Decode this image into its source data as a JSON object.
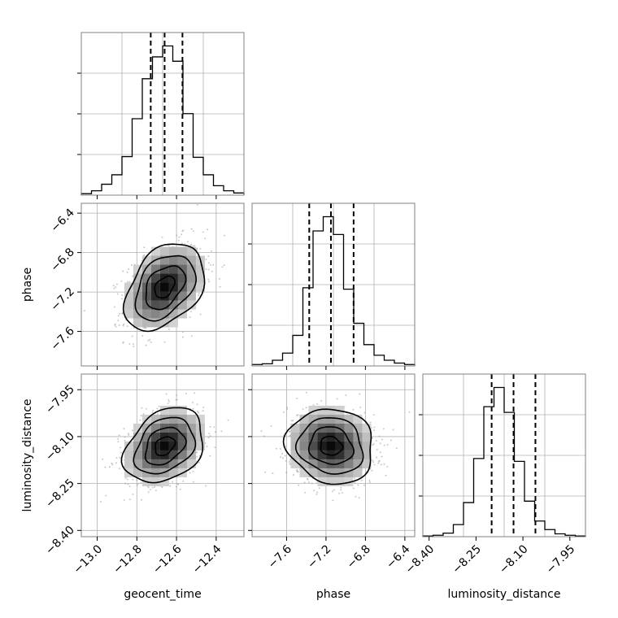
{
  "chart_data": {
    "type": "corner",
    "title": "",
    "parameters": [
      {
        "label": "geocent_time",
        "range": [
          -13.08,
          -12.26
        ],
        "ticks": [
          "−13.0",
          "−12.8",
          "−12.6",
          "−12.4"
        ],
        "tick_values": [
          -13.0,
          -12.8,
          -12.6,
          -12.4
        ],
        "quantiles": [
          -12.73,
          -12.66,
          -12.57
        ]
      },
      {
        "label": "phase",
        "range": [
          -7.95,
          -6.3
        ],
        "ticks": [
          "−7.6",
          "−7.2",
          "−6.8",
          "−6.4"
        ],
        "tick_values": [
          -7.6,
          -7.2,
          -6.8,
          -6.4
        ],
        "quantiles": [
          -7.37,
          -7.15,
          -6.92
        ]
      },
      {
        "label": "luminosity_distance",
        "range": [
          -8.42,
          -7.9
        ],
        "ticks": [
          "−8.40",
          "−8.25",
          "−8.10",
          "−7.95"
        ],
        "tick_values": [
          -8.4,
          -8.25,
          -8.1,
          -7.95
        ],
        "quantiles": [
          -8.2,
          -8.13,
          -8.06
        ]
      }
    ],
    "histograms": [
      {
        "param": "geocent_time",
        "bin_edges_range": [
          -13.08,
          -12.26
        ],
        "counts": [
          0.2,
          0.6,
          1.5,
          2.8,
          5.3,
          10.5,
          16.0,
          19.0,
          20.5,
          18.4,
          11.2,
          5.2,
          2.8,
          1.3,
          0.6,
          0.3
        ]
      },
      {
        "param": "phase",
        "bin_edges_range": [
          -7.95,
          -6.3
        ],
        "counts": [
          0.2,
          0.3,
          0.8,
          1.8,
          4.3,
          11.0,
          19.0,
          21.0,
          18.5,
          10.8,
          6.0,
          3.0,
          1.5,
          0.8,
          0.4,
          0.2
        ]
      },
      {
        "param": "luminosity_distance",
        "bin_edges_range": [
          -8.42,
          -7.9
        ],
        "counts": [
          0.1,
          0.2,
          0.5,
          1.7,
          4.8,
          11.0,
          18.3,
          21.0,
          17.5,
          10.6,
          5.0,
          2.2,
          1.0,
          0.4,
          0.2,
          0.1
        ]
      }
    ],
    "contours": [
      {
        "x": "geocent_time",
        "y": "phase",
        "center": [
          -12.66,
          -7.15
        ],
        "sigma": [
          0.1,
          0.22
        ],
        "rho": 0.38
      },
      {
        "x": "geocent_time",
        "y": "luminosity_distance",
        "center": [
          -12.66,
          -8.13
        ],
        "sigma": [
          0.1,
          0.06
        ],
        "rho": 0.3
      },
      {
        "x": "phase",
        "y": "luminosity_distance",
        "center": [
          -7.15,
          -8.13
        ],
        "sigma": [
          0.22,
          0.06
        ],
        "rho": -0.1
      }
    ],
    "contour_levels_sigma": [
      0.5,
      1.0,
      1.5,
      2.0
    ],
    "grid": true,
    "colors": {
      "line": "#000000",
      "grid": "#b0b0b0",
      "scatter": "#9a9a9a"
    }
  }
}
